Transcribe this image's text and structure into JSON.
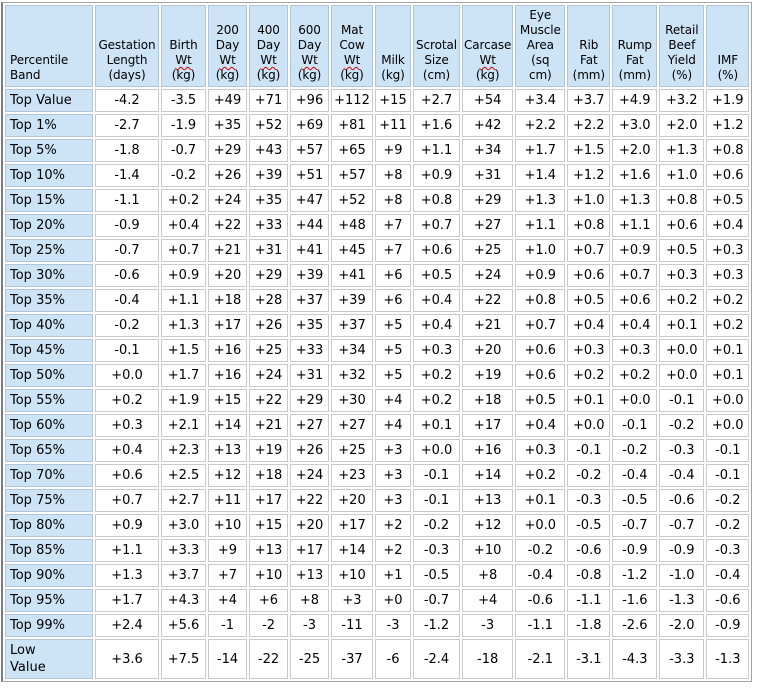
{
  "header": {
    "columns": [
      {
        "lines": [
          "Percentile",
          "Band"
        ],
        "misspelled": []
      },
      {
        "lines": [
          "Gestation",
          "Length",
          "(days)"
        ],
        "misspelled": []
      },
      {
        "lines": [
          "Birth",
          "Wt",
          "(kg)"
        ],
        "misspelled": [
          "Wt"
        ]
      },
      {
        "lines": [
          "200",
          "Day",
          "Wt",
          "(kg)"
        ],
        "misspelled": [
          "Wt"
        ]
      },
      {
        "lines": [
          "400",
          "Day",
          "Wt",
          "(kg)"
        ],
        "misspelled": [
          "Wt"
        ]
      },
      {
        "lines": [
          "600",
          "Day",
          "Wt",
          "(kg)"
        ],
        "misspelled": [
          "Wt"
        ]
      },
      {
        "lines": [
          "Mat",
          "Cow",
          "Wt",
          "(kg)"
        ],
        "misspelled": [
          "Wt"
        ]
      },
      {
        "lines": [
          "Milk",
          "(kg)"
        ],
        "misspelled": []
      },
      {
        "lines": [
          "Scrotal",
          "Size",
          "(cm)"
        ],
        "misspelled": []
      },
      {
        "lines": [
          "Carcase",
          "Wt",
          "(kg)"
        ],
        "misspelled": [
          "Wt"
        ]
      },
      {
        "lines": [
          "Eye",
          "Muscle",
          "Area",
          "(sq",
          "cm)"
        ],
        "misspelled": []
      },
      {
        "lines": [
          "Rib",
          "Fat",
          "(mm)"
        ],
        "misspelled": []
      },
      {
        "lines": [
          "Rump",
          "Fat",
          "(mm)"
        ],
        "misspelled": []
      },
      {
        "lines": [
          "Retail",
          "Beef",
          "Yield",
          "(%)"
        ],
        "misspelled": []
      },
      {
        "lines": [
          "IMF",
          "(%)"
        ],
        "misspelled": []
      }
    ]
  },
  "chart_data": {
    "type": "table",
    "title": "EBV Percentile Band Table",
    "columns": [
      "Percentile Band",
      "Gestation Length (days)",
      "Birth Wt (kg)",
      "200 Day Wt (kg)",
      "400 Day Wt (kg)",
      "600 Day Wt (kg)",
      "Mat Cow Wt (kg)",
      "Milk (kg)",
      "Scrotal Size (cm)",
      "Carcase Wt (kg)",
      "Eye Muscle Area (sq cm)",
      "Rib Fat (mm)",
      "Rump Fat (mm)",
      "Retail Beef Yield (%)",
      "IMF (%)"
    ],
    "rows": [
      [
        "Top Value",
        "-4.2",
        "-3.5",
        "+49",
        "+71",
        "+96",
        "+112",
        "+15",
        "+2.7",
        "+54",
        "+3.4",
        "+3.7",
        "+4.9",
        "+3.2",
        "+1.9"
      ],
      [
        "Top 1%",
        "-2.7",
        "-1.9",
        "+35",
        "+52",
        "+69",
        "+81",
        "+11",
        "+1.6",
        "+42",
        "+2.2",
        "+2.2",
        "+3.0",
        "+2.0",
        "+1.2"
      ],
      [
        "Top 5%",
        "-1.8",
        "-0.7",
        "+29",
        "+43",
        "+57",
        "+65",
        "+9",
        "+1.1",
        "+34",
        "+1.7",
        "+1.5",
        "+2.0",
        "+1.3",
        "+0.8"
      ],
      [
        "Top 10%",
        "-1.4",
        "-0.2",
        "+26",
        "+39",
        "+51",
        "+57",
        "+8",
        "+0.9",
        "+31",
        "+1.4",
        "+1.2",
        "+1.6",
        "+1.0",
        "+0.6"
      ],
      [
        "Top 15%",
        "-1.1",
        "+0.2",
        "+24",
        "+35",
        "+47",
        "+52",
        "+8",
        "+0.8",
        "+29",
        "+1.3",
        "+1.0",
        "+1.3",
        "+0.8",
        "+0.5"
      ],
      [
        "Top 20%",
        "-0.9",
        "+0.4",
        "+22",
        "+33",
        "+44",
        "+48",
        "+7",
        "+0.7",
        "+27",
        "+1.1",
        "+0.8",
        "+1.1",
        "+0.6",
        "+0.4"
      ],
      [
        "Top 25%",
        "-0.7",
        "+0.7",
        "+21",
        "+31",
        "+41",
        "+45",
        "+7",
        "+0.6",
        "+25",
        "+1.0",
        "+0.7",
        "+0.9",
        "+0.5",
        "+0.3"
      ],
      [
        "Top 30%",
        "-0.6",
        "+0.9",
        "+20",
        "+29",
        "+39",
        "+41",
        "+6",
        "+0.5",
        "+24",
        "+0.9",
        "+0.6",
        "+0.7",
        "+0.3",
        "+0.3"
      ],
      [
        "Top 35%",
        "-0.4",
        "+1.1",
        "+18",
        "+28",
        "+37",
        "+39",
        "+6",
        "+0.4",
        "+22",
        "+0.8",
        "+0.5",
        "+0.6",
        "+0.2",
        "+0.2"
      ],
      [
        "Top 40%",
        "-0.2",
        "+1.3",
        "+17",
        "+26",
        "+35",
        "+37",
        "+5",
        "+0.4",
        "+21",
        "+0.7",
        "+0.4",
        "+0.4",
        "+0.1",
        "+0.2"
      ],
      [
        "Top 45%",
        "-0.1",
        "+1.5",
        "+16",
        "+25",
        "+33",
        "+34",
        "+5",
        "+0.3",
        "+20",
        "+0.6",
        "+0.3",
        "+0.3",
        "+0.0",
        "+0.1"
      ],
      [
        "Top 50%",
        "+0.0",
        "+1.7",
        "+16",
        "+24",
        "+31",
        "+32",
        "+5",
        "+0.2",
        "+19",
        "+0.6",
        "+0.2",
        "+0.2",
        "+0.0",
        "+0.1"
      ],
      [
        "Top 55%",
        "+0.2",
        "+1.9",
        "+15",
        "+22",
        "+29",
        "+30",
        "+4",
        "+0.2",
        "+18",
        "+0.5",
        "+0.1",
        "+0.0",
        "-0.1",
        "+0.0"
      ],
      [
        "Top 60%",
        "+0.3",
        "+2.1",
        "+14",
        "+21",
        "+27",
        "+27",
        "+4",
        "+0.1",
        "+17",
        "+0.4",
        "+0.0",
        "-0.1",
        "-0.2",
        "+0.0"
      ],
      [
        "Top 65%",
        "+0.4",
        "+2.3",
        "+13",
        "+19",
        "+26",
        "+25",
        "+3",
        "+0.0",
        "+16",
        "+0.3",
        "-0.1",
        "-0.2",
        "-0.3",
        "-0.1"
      ],
      [
        "Top 70%",
        "+0.6",
        "+2.5",
        "+12",
        "+18",
        "+24",
        "+23",
        "+3",
        "-0.1",
        "+14",
        "+0.2",
        "-0.2",
        "-0.4",
        "-0.4",
        "-0.1"
      ],
      [
        "Top 75%",
        "+0.7",
        "+2.7",
        "+11",
        "+17",
        "+22",
        "+20",
        "+3",
        "-0.1",
        "+13",
        "+0.1",
        "-0.3",
        "-0.5",
        "-0.6",
        "-0.2"
      ],
      [
        "Top 80%",
        "+0.9",
        "+3.0",
        "+10",
        "+15",
        "+20",
        "+17",
        "+2",
        "-0.2",
        "+12",
        "+0.0",
        "-0.5",
        "-0.7",
        "-0.7",
        "-0.2"
      ],
      [
        "Top 85%",
        "+1.1",
        "+3.3",
        "+9",
        "+13",
        "+17",
        "+14",
        "+2",
        "-0.3",
        "+10",
        "-0.2",
        "-0.6",
        "-0.9",
        "-0.9",
        "-0.3"
      ],
      [
        "Top 90%",
        "+1.3",
        "+3.7",
        "+7",
        "+10",
        "+13",
        "+10",
        "+1",
        "-0.5",
        "+8",
        "-0.4",
        "-0.8",
        "-1.2",
        "-1.0",
        "-0.4"
      ],
      [
        "Top 95%",
        "+1.7",
        "+4.3",
        "+4",
        "+6",
        "+8",
        "+3",
        "+0",
        "-0.7",
        "+4",
        "-0.6",
        "-1.1",
        "-1.6",
        "-1.3",
        "-0.6"
      ],
      [
        "Top 99%",
        "+2.4",
        "+5.6",
        "-1",
        "-2",
        "-3",
        "-11",
        "-3",
        "-1.2",
        "-3",
        "-1.1",
        "-1.8",
        "-2.6",
        "-2.0",
        "-0.9"
      ],
      [
        "Low\nValue",
        "+3.6",
        "+7.5",
        "-14",
        "-22",
        "-25",
        "-37",
        "-6",
        "-2.4",
        "-18",
        "-2.1",
        "-3.1",
        "-4.3",
        "-3.3",
        "-1.3"
      ]
    ]
  },
  "colors": {
    "header_background": "#cde3f6",
    "cell_background": "#ffffff",
    "cell_border": "#c9c9c9",
    "header_border": "#b2c5d8",
    "spellcheck_underline": "#d40000",
    "text": "#000000"
  }
}
